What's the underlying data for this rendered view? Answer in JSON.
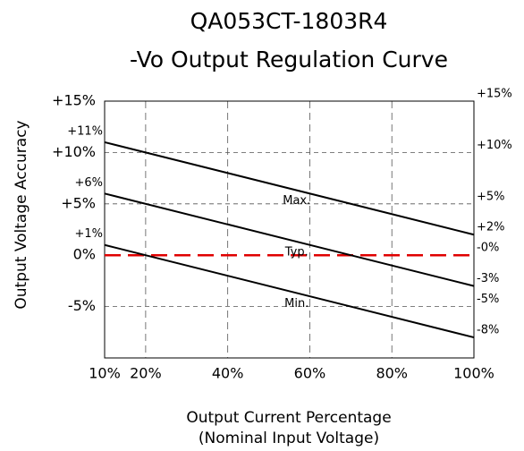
{
  "chart_data": {
    "type": "line",
    "title": "QA053CT-1803R4",
    "subtitle": "-Vo Output Regulation Curve",
    "x_label": "Output Current Percentage",
    "x_label_note": "(Nominal Input Voltage)",
    "y_label": "Output Voltage Accuracy",
    "xlim": [
      10,
      100
    ],
    "xticks": [
      {
        "value": 10,
        "label": "10%"
      },
      {
        "value": 20,
        "label": "20%"
      },
      {
        "value": 40,
        "label": "40%"
      },
      {
        "value": 60,
        "label": "60%"
      },
      {
        "value": 80,
        "label": "80%"
      },
      {
        "value": 100,
        "label": "100%"
      }
    ],
    "ylim": [
      -10,
      15
    ],
    "yticks": [
      {
        "value": 15,
        "label": "+15%"
      },
      {
        "value": 10,
        "label": "+10%"
      },
      {
        "value": 5,
        "label": "+5%"
      },
      {
        "value": 0,
        "label": "0%"
      },
      {
        "value": -5,
        "label": "-5%"
      }
    ],
    "y2lim": [
      -10,
      15
    ],
    "y2ticks": [
      {
        "value": 15,
        "label": "+15%"
      },
      {
        "value": 10,
        "label": "+10%"
      },
      {
        "value": 5,
        "label": "+5%"
      },
      {
        "value": 2,
        "label": "+2%"
      },
      {
        "value": 0,
        "label": "-0%"
      },
      {
        "value": -3,
        "label": "-3%"
      },
      {
        "value": -5,
        "label": "-5%"
      },
      {
        "value": -8,
        "label": "-8%"
      }
    ],
    "grid": true,
    "reference_line": {
      "value": 0,
      "color": "#e00000"
    },
    "x": [
      10,
      100
    ],
    "series": [
      {
        "name": "Max.",
        "color": "#000000",
        "values": [
          11,
          2
        ],
        "value_labels": [
          "+11%",
          null
        ]
      },
      {
        "name": "Typ.",
        "color": "#000000",
        "values": [
          6,
          -3
        ],
        "value_labels": [
          "+6%",
          null
        ]
      },
      {
        "name": "Min.",
        "color": "#000000",
        "values": [
          1,
          -8
        ],
        "value_labels": [
          "+1%",
          null
        ]
      }
    ]
  }
}
